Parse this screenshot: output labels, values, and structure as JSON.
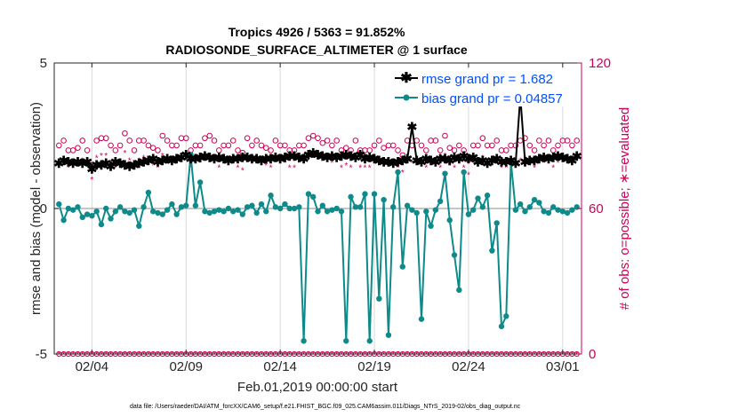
{
  "title": {
    "line1": "Tropics 4926 / 5363 = 91.852%",
    "line2": "RADIOSONDE_SURFACE_ALTIMETER @ 1 surface"
  },
  "colors": {
    "rmse": "#000000",
    "bias": "#0e8a8a",
    "obs": "#cc0055",
    "zero_line": "#b3b3b3",
    "legend_text": "#0050ff"
  },
  "chart_data": {
    "type": "line",
    "xlabel": "Feb.01,2019 00:00:00 start",
    "ylabel_left": "rmse and bias (model - observation)",
    "ylabel_right": "# of obs: o=possible; ∗=evaluated",
    "xlim": [
      1.0,
      29.0
    ],
    "ylim_left": [
      -5,
      5
    ],
    "ylim_right": [
      0,
      120
    ],
    "x_ticks": [
      3.0,
      8.0,
      13.0,
      18.0,
      23.0,
      28.0
    ],
    "x_tick_labels": [
      "02/04",
      "02/09",
      "02/14",
      "02/19",
      "02/24",
      "03/01"
    ],
    "y_ticks_left": [
      -5,
      0,
      5
    ],
    "y_tick_labels_left": [
      "-5",
      "0",
      "5"
    ],
    "y_ticks_right": [
      0,
      60,
      120
    ],
    "y_tick_labels_right": [
      "0",
      "60",
      "120"
    ],
    "grid": "vertical dotted at x ticks",
    "legend_position": "top-right",
    "x": [
      1.25,
      1.5,
      1.75,
      2.0,
      2.25,
      2.5,
      2.75,
      3.0,
      3.25,
      3.5,
      3.75,
      4.0,
      4.25,
      4.5,
      4.75,
      5.0,
      5.25,
      5.5,
      5.75,
      6.0,
      6.25,
      6.5,
      6.75,
      7.0,
      7.25,
      7.5,
      7.75,
      8.0,
      8.25,
      8.5,
      8.75,
      9.0,
      9.25,
      9.5,
      9.75,
      10.0,
      10.25,
      10.5,
      10.75,
      11.0,
      11.25,
      11.5,
      11.75,
      12.0,
      12.25,
      12.5,
      12.75,
      13.0,
      13.25,
      13.5,
      13.75,
      14.0,
      14.25,
      14.5,
      14.75,
      15.0,
      15.25,
      15.5,
      15.75,
      16.0,
      16.25,
      16.5,
      16.75,
      17.0,
      17.25,
      17.5,
      17.75,
      18.0,
      18.25,
      18.5,
      18.75,
      19.0,
      19.25,
      19.5,
      19.75,
      20.0,
      20.25,
      20.5,
      20.75,
      21.0,
      21.25,
      21.5,
      21.75,
      22.0,
      22.25,
      22.5,
      22.75,
      23.0,
      23.25,
      23.5,
      23.75,
      24.0,
      24.25,
      24.5,
      24.75,
      25.0,
      25.25,
      25.5,
      25.75,
      26.0,
      26.25,
      26.5,
      26.75,
      27.0,
      27.25,
      27.5,
      27.75,
      28.0,
      28.25,
      28.5,
      28.75
    ],
    "series": [
      {
        "name": "rmse grand pr = 1.682",
        "values": [
          1.55,
          1.65,
          1.6,
          1.55,
          1.6,
          1.55,
          1.6,
          1.35,
          1.5,
          1.5,
          1.55,
          1.45,
          1.6,
          1.55,
          1.5,
          1.45,
          1.5,
          1.55,
          1.6,
          1.65,
          1.7,
          1.6,
          1.65,
          1.7,
          1.65,
          1.7,
          1.75,
          1.85,
          1.7,
          1.7,
          1.75,
          1.8,
          1.75,
          1.7,
          1.75,
          1.7,
          1.65,
          1.7,
          1.7,
          1.75,
          1.75,
          1.7,
          1.7,
          1.65,
          1.7,
          1.7,
          1.75,
          1.7,
          1.75,
          1.8,
          1.8,
          1.75,
          1.7,
          1.85,
          1.9,
          1.85,
          1.8,
          1.75,
          1.8,
          1.75,
          1.8,
          1.85,
          1.8,
          1.75,
          1.85,
          1.7,
          1.75,
          1.7,
          1.65,
          1.6,
          1.6,
          1.55,
          1.6,
          1.65,
          1.7,
          2.8,
          1.65,
          1.6,
          1.7,
          1.65,
          1.6,
          1.7,
          1.7,
          1.65,
          1.75,
          1.7,
          1.8,
          1.7,
          1.75,
          1.6,
          1.65,
          1.55,
          1.65,
          1.7,
          1.6,
          1.6,
          1.65,
          1.55,
          3.85,
          1.6,
          1.65,
          1.65,
          1.7,
          1.75,
          1.7,
          1.75,
          1.8,
          1.75,
          1.7,
          1.65,
          1.8
        ]
      },
      {
        "name": "bias grand pr = 0.04857",
        "values": [
          0.15,
          -0.4,
          0.0,
          -0.05,
          0.05,
          -0.3,
          -0.2,
          -0.25,
          -0.1,
          -0.55,
          0.0,
          -0.35,
          -0.1,
          0.05,
          -0.1,
          -0.15,
          -0.05,
          -0.6,
          0.05,
          0.55,
          -0.1,
          -0.15,
          -0.2,
          -0.05,
          0.15,
          -0.2,
          0.05,
          0.1,
          1.85,
          0.1,
          0.9,
          -0.1,
          -0.15,
          -0.1,
          -0.05,
          -0.1,
          0.0,
          -0.1,
          -0.05,
          -0.2,
          0.05,
          0.1,
          -0.15,
          0.15,
          -0.1,
          0.45,
          0.05,
          0.0,
          0.15,
          0.0,
          0.0,
          0.05,
          -4.55,
          0.5,
          0.4,
          -0.1,
          0.1,
          -0.1,
          -0.05,
          0.0,
          -0.1,
          -4.55,
          0.4,
          0.05,
          0.05,
          0.5,
          -4.55,
          0.5,
          -3.1,
          0.3,
          -4.35,
          0.05,
          1.25,
          -2.0,
          0.1,
          -0.05,
          -0.15,
          -3.8,
          -0.1,
          -0.6,
          -0.05,
          0.25,
          1.2,
          -0.4,
          -1.6,
          -2.8,
          1.25,
          -0.2,
          -0.05,
          0.35,
          0.05,
          0.45,
          -1.45,
          -0.5,
          -4.05,
          -3.7,
          1.6,
          -0.05,
          0.15,
          -0.1,
          0.05,
          0.3,
          0.2,
          -0.1,
          -0.15,
          0.05,
          -0.05,
          -0.1,
          -0.15,
          -0.05,
          0.05
        ]
      },
      {
        "name": "# possible",
        "values": [
          86,
          88,
          84,
          84,
          85,
          88,
          84,
          78,
          88,
          89,
          89,
          86,
          84,
          86,
          91,
          88,
          84,
          88,
          88,
          86,
          85,
          84,
          90,
          88,
          86,
          86,
          89,
          89,
          84,
          86,
          86,
          89,
          90,
          88,
          84,
          86,
          86,
          88,
          84,
          83,
          89,
          86,
          88,
          86,
          85,
          84,
          88,
          86,
          86,
          84,
          84,
          86,
          86,
          89,
          90,
          89,
          87,
          88,
          86,
          88,
          84,
          85,
          84,
          88,
          84,
          84,
          84,
          86,
          88,
          85,
          86,
          86,
          84,
          82,
          88,
          86,
          88,
          86,
          84,
          88,
          88,
          84,
          90,
          85,
          84,
          86,
          84,
          80,
          86,
          86,
          89,
          86,
          86,
          88,
          84,
          84,
          86,
          86,
          88,
          89,
          86,
          84,
          88,
          86,
          88,
          84,
          86,
          88,
          88,
          86,
          88
        ]
      },
      {
        "name": "# evaluated",
        "values": [
          78,
          80,
          77,
          78,
          79,
          80,
          78,
          72,
          81,
          82,
          82,
          79,
          77,
          79,
          83,
          80,
          78,
          80,
          81,
          79,
          78,
          77,
          82,
          80,
          79,
          79,
          82,
          82,
          77,
          79,
          79,
          82,
          82,
          80,
          77,
          79,
          79,
          80,
          77,
          76,
          81,
          79,
          80,
          79,
          78,
          77,
          80,
          79,
          79,
          77,
          77,
          79,
          79,
          81,
          82,
          81,
          80,
          80,
          79,
          80,
          77,
          78,
          77,
          80,
          77,
          77,
          77,
          79,
          80,
          78,
          79,
          79,
          77,
          75,
          80,
          79,
          80,
          79,
          77,
          80,
          80,
          77,
          82,
          78,
          77,
          79,
          77,
          74,
          79,
          79,
          81,
          79,
          79,
          80,
          77,
          77,
          79,
          79,
          80,
          81,
          79,
          77,
          80,
          79,
          80,
          77,
          79,
          80,
          80,
          79,
          80
        ]
      }
    ]
  },
  "legend": [
    {
      "label": "rmse grand pr = 1.682"
    },
    {
      "label": "bias grand pr = 0.04857"
    }
  ],
  "footer": "data file: /Users/raeder/DAI/ATM_forcXX/CAM6_setup/f.e21.FHIST_BGC.f09_025.CAM6assim.011/Diags_NTrS_2019-02/obs_diag_output.nc"
}
